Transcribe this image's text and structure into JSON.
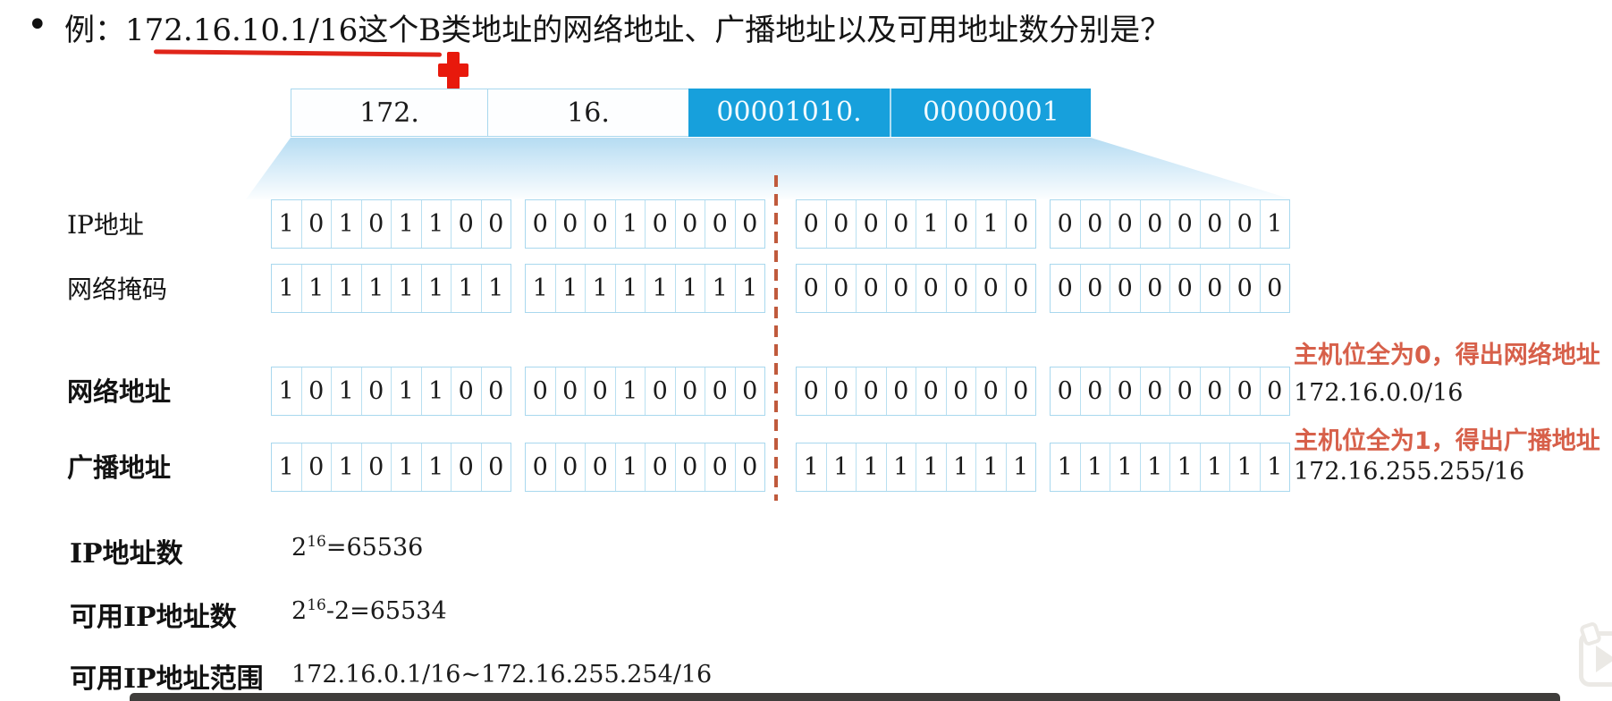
{
  "title": {
    "bullet": "•",
    "prefix": "例：",
    "underlined": "172.16.10.1/16",
    "suffix": "这个B类地址的网络地址、广播地址以及可用地址数分别是？"
  },
  "octet_header": {
    "cells": [
      {
        "text": "172."
      },
      {
        "text": "16."
      },
      {
        "text": "00001010."
      },
      {
        "text": "00000001"
      }
    ]
  },
  "bit_rows": [
    {
      "label": "IP地址",
      "octets": [
        "10101100",
        "00010000",
        "00001010",
        "00000001"
      ]
    },
    {
      "label": "网络掩码",
      "octets": [
        "11111111",
        "11111111",
        "00000000",
        "00000000"
      ]
    },
    {
      "label": "网络地址",
      "octets": [
        "10101100",
        "00010000",
        "00000000",
        "00000000"
      ],
      "note": "主机位全为0，得出网络地址",
      "result": "172.16.0.0/16"
    },
    {
      "label": "广播地址",
      "octets": [
        "10101100",
        "00010000",
        "11111111",
        "11111111"
      ],
      "note": "主机位全为1，得出广播地址",
      "result": "172.16.255.255/16"
    }
  ],
  "summary": [
    {
      "label": "IP地址数",
      "value_base": "2",
      "value_sup": "16",
      "value_rest": "=65536"
    },
    {
      "label": "可用IP地址数",
      "value_base": "2",
      "value_sup": "16",
      "value_rest": "-2=65534"
    },
    {
      "label": "可用IP地址范围",
      "value_base": "",
      "value_sup": "",
      "value_rest": "172.16.0.1/16~172.16.255.254/16"
    }
  ],
  "colors": {
    "octet_highlight_blue": "#17a0dc",
    "note_orange": "#d7604a",
    "divider_dash": "#c05a3c",
    "marker_red": "#e8190c",
    "box_border_blue": "#a9d8ee"
  }
}
